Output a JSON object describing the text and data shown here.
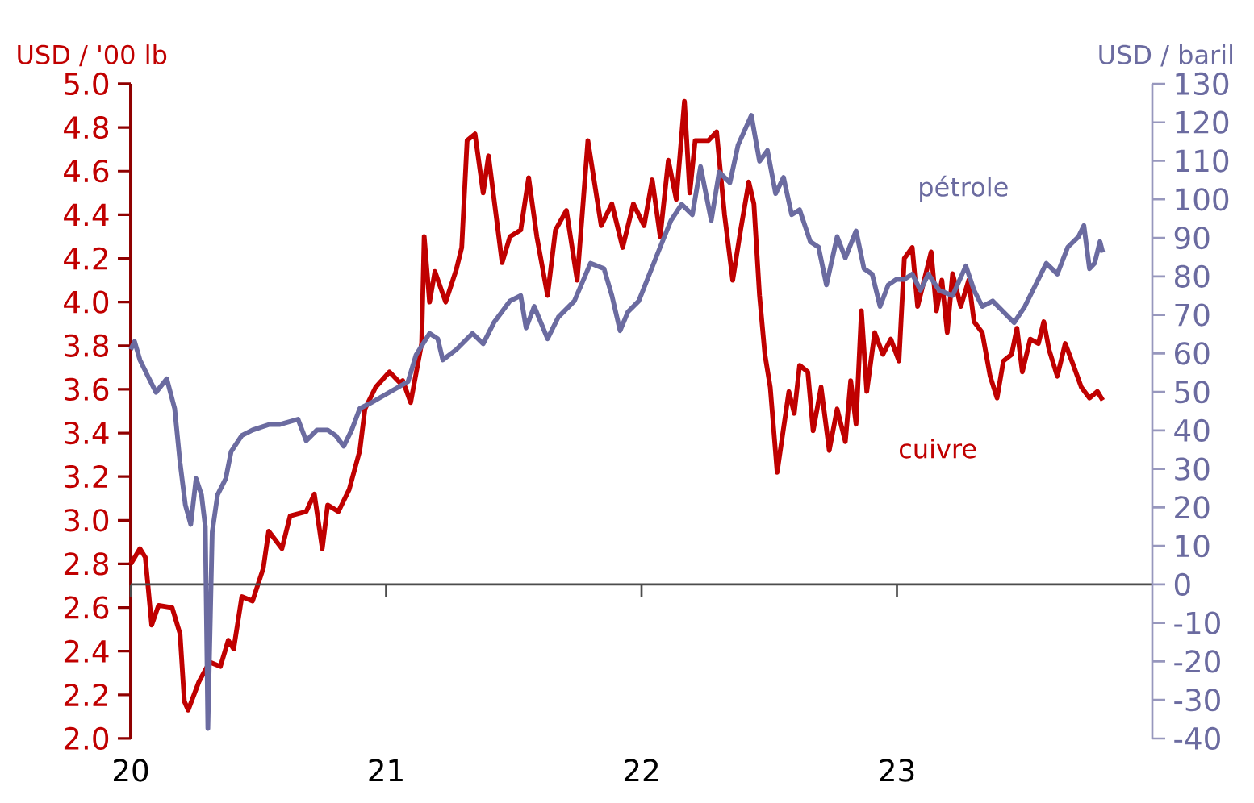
{
  "chart_data": {
    "type": "line",
    "ylabel": "USD / '00 lb",
    "y2label": "USD / baril",
    "xlim": [
      2020,
      2024
    ],
    "xticks": [
      {
        "value": 2020,
        "label": "20"
      },
      {
        "value": 2021,
        "label": "21"
      },
      {
        "value": 2022,
        "label": "22"
      },
      {
        "value": 2023,
        "label": "23"
      },
      {
        "value": 2024,
        "label": null
      }
    ],
    "ylim": [
      2.0,
      5.0
    ],
    "yticks": [
      {
        "value": 2,
        "label": "2.0"
      },
      2.2,
      2.4,
      2.6,
      2.8,
      {
        "value": 3,
        "label": "3.0"
      },
      3.2,
      3.4,
      3.6,
      3.8,
      {
        "value": 4,
        "label": "4.0"
      },
      4.2,
      4.4,
      4.6,
      4.8,
      {
        "value": 5,
        "label": "5.0"
      }
    ],
    "y2lim": [
      -40,
      130
    ],
    "y2ticks": [
      -40,
      -30,
      -20,
      -10,
      0,
      10,
      20,
      30,
      40,
      50,
      60,
      70,
      80,
      90,
      100,
      110,
      120,
      130
    ],
    "marker": "none",
    "line_style": "solid",
    "series": [
      {
        "name": "cuivre",
        "color": "#c00000",
        "x": [
          2020.0,
          2020.036,
          2020.057,
          2020.082,
          2020.109,
          2020.162,
          2020.193,
          2020.21,
          2020.225,
          2020.267,
          2020.309,
          2020.351,
          2020.382,
          2020.403,
          2020.435,
          2020.477,
          2020.519,
          2020.54,
          2020.592,
          2020.624,
          2020.687,
          2020.719,
          2020.75,
          2020.771,
          2020.813,
          2020.855,
          2020.897,
          2020.917,
          2020.959,
          2021.013,
          2021.054,
          2021.065,
          2021.096,
          2021.139,
          2021.149,
          2021.17,
          2021.191,
          2021.233,
          2021.275,
          2021.296,
          2021.317,
          2021.348,
          2021.38,
          2021.401,
          2021.454,
          2021.485,
          2021.527,
          2021.558,
          2021.59,
          2021.632,
          2021.663,
          2021.706,
          2021.748,
          2021.79,
          2021.842,
          2021.884,
          2021.926,
          2021.968,
          2022.01,
          2022.042,
          2022.073,
          2022.105,
          2022.136,
          2022.168,
          2022.189,
          2022.21,
          2022.262,
          2022.294,
          2022.325,
          2022.357,
          2022.388,
          2022.42,
          2022.44,
          2022.462,
          2022.483,
          2022.504,
          2022.531,
          2022.577,
          2022.598,
          2022.619,
          2022.651,
          2022.672,
          2022.703,
          2022.735,
          2022.766,
          2022.798,
          2022.819,
          2022.84,
          2022.861,
          2022.882,
          2022.913,
          2022.945,
          2022.976,
          2023.008,
          2023.029,
          2023.06,
          2023.081,
          2023.113,
          2023.134,
          2023.155,
          2023.176,
          2023.197,
          2023.218,
          2023.25,
          2023.281,
          2023.302,
          2023.334,
          2023.365,
          2023.392,
          2023.417,
          2023.449,
          2023.47,
          2023.491,
          2023.522,
          2023.554,
          2023.575,
          2023.596,
          2023.628,
          2023.659,
          2023.691,
          2023.722,
          2023.754,
          2023.785,
          2023.806
        ],
        "values": [
          2.8,
          2.87,
          2.83,
          2.52,
          2.61,
          2.6,
          2.48,
          2.17,
          2.13,
          2.26,
          2.35,
          2.33,
          2.45,
          2.41,
          2.65,
          2.63,
          2.78,
          2.95,
          2.87,
          3.02,
          3.04,
          3.12,
          2.87,
          3.07,
          3.04,
          3.14,
          3.32,
          3.51,
          3.61,
          3.68,
          3.63,
          3.64,
          3.54,
          3.81,
          4.3,
          4.0,
          4.14,
          4.0,
          4.15,
          4.25,
          4.74,
          4.77,
          4.5,
          4.67,
          4.18,
          4.3,
          4.33,
          4.57,
          4.3,
          4.03,
          4.33,
          4.42,
          4.1,
          4.74,
          4.35,
          4.45,
          4.25,
          4.45,
          4.35,
          4.56,
          4.3,
          4.65,
          4.47,
          4.92,
          4.5,
          4.74,
          4.74,
          4.78,
          4.4,
          4.1,
          4.33,
          4.55,
          4.45,
          4.03,
          3.76,
          3.61,
          3.22,
          3.59,
          3.49,
          3.71,
          3.68,
          3.41,
          3.61,
          3.32,
          3.51,
          3.36,
          3.64,
          3.44,
          3.96,
          3.59,
          3.86,
          3.76,
          3.83,
          3.73,
          4.2,
          4.25,
          3.98,
          4.13,
          4.23,
          3.96,
          4.1,
          3.86,
          4.13,
          3.98,
          4.1,
          3.91,
          3.86,
          3.66,
          3.56,
          3.73,
          3.76,
          3.88,
          3.68,
          3.83,
          3.81,
          3.91,
          3.78,
          3.66,
          3.81,
          3.71,
          3.61,
          3.56,
          3.59,
          3.55
        ]
      },
      {
        "name": "pétrole",
        "color": "#6b6ba0",
        "axis": "y2",
        "x": [
          2020.0,
          2020.015,
          2020.036,
          2020.067,
          2020.099,
          2020.141,
          2020.172,
          2020.193,
          2020.214,
          2020.235,
          2020.256,
          2020.277,
          2020.292,
          2020.302,
          2020.319,
          2020.34,
          2020.372,
          2020.393,
          2020.435,
          2020.477,
          2020.54,
          2020.582,
          2020.655,
          2020.687,
          2020.729,
          2020.771,
          2020.802,
          2020.834,
          2020.865,
          2020.897,
          2020.939,
          2021.086,
          2021.117,
          2021.17,
          2021.202,
          2021.222,
          2021.275,
          2021.338,
          2021.38,
          2021.422,
          2021.485,
          2021.527,
          2021.548,
          2021.58,
          2021.632,
          2021.674,
          2021.737,
          2021.8,
          2021.853,
          2021.884,
          2021.916,
          2021.947,
          2021.989,
          2022.031,
          2022.073,
          2022.115,
          2022.157,
          2022.199,
          2022.231,
          2022.273,
          2022.304,
          2022.346,
          2022.378,
          2022.43,
          2022.462,
          2022.493,
          2022.525,
          2022.556,
          2022.588,
          2022.619,
          2022.661,
          2022.693,
          2022.724,
          2022.766,
          2022.798,
          2022.84,
          2022.871,
          2022.903,
          2022.934,
          2022.966,
          2022.997,
          2023.029,
          2023.06,
          2023.092,
          2023.123,
          2023.165,
          2023.218,
          2023.27,
          2023.302,
          2023.334,
          2023.375,
          2023.417,
          2023.459,
          2023.501,
          2023.543,
          2023.585,
          2023.628,
          2023.669,
          2023.711,
          2023.732,
          2023.754,
          2023.774,
          2023.795,
          2023.806
        ],
        "values": [
          61.0,
          63.1,
          58.3,
          54.1,
          49.9,
          53.4,
          45.7,
          31.7,
          20.6,
          15.6,
          27.5,
          23.3,
          15.0,
          -37.4,
          13.6,
          23.3,
          27.5,
          34.5,
          38.7,
          40.1,
          41.5,
          41.5,
          42.9,
          37.3,
          40.1,
          40.1,
          38.7,
          35.9,
          40.1,
          45.7,
          47.1,
          52.7,
          59.6,
          65.2,
          63.8,
          58.3,
          61.0,
          65.2,
          62.5,
          68.0,
          73.6,
          75.0,
          66.6,
          72.2,
          63.8,
          69.4,
          73.6,
          83.4,
          82.0,
          75.0,
          65.9,
          70.8,
          73.6,
          80.6,
          87.6,
          94.5,
          98.7,
          96.0,
          108.5,
          94.5,
          107.1,
          104.3,
          114.1,
          121.8,
          109.9,
          112.7,
          101.5,
          105.7,
          96.0,
          97.3,
          89.0,
          87.6,
          77.8,
          90.3,
          84.8,
          91.8,
          82.0,
          80.6,
          72.2,
          77.8,
          79.2,
          79.2,
          80.6,
          76.4,
          80.6,
          76.4,
          75.0,
          82.7,
          76.4,
          72.2,
          73.6,
          70.8,
          68.0,
          72.2,
          77.8,
          83.4,
          80.6,
          87.6,
          90.3,
          93.2,
          82.0,
          83.4,
          89.0,
          86.2
        ]
      }
    ]
  }
}
